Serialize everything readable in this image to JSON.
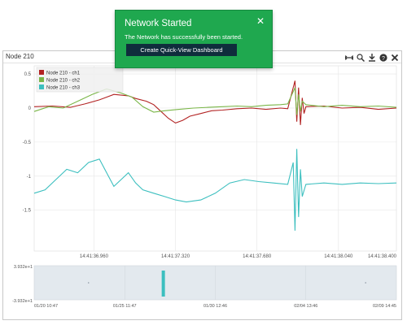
{
  "panel": {
    "title": "Node 210",
    "toolbar": [
      {
        "name": "pan-icon",
        "glyph": "⋈"
      },
      {
        "name": "zoom-icon",
        "glyph": "⌕"
      },
      {
        "name": "download-icon",
        "glyph": "⤓"
      },
      {
        "name": "help-icon",
        "glyph": "?"
      },
      {
        "name": "close-icon",
        "glyph": "✕"
      }
    ]
  },
  "toast": {
    "title": "Network Started",
    "message": "The Network has successfully been started.",
    "button_label": "Create Quick-View Dashboard",
    "close_glyph": "✕",
    "bg_color": "#1fa84f",
    "button_color": "#0f2d3c"
  },
  "chart_data": {
    "type": "line",
    "legend_position": "top-left",
    "grid": true,
    "y_ticks": [
      "0.5",
      "0",
      "-0.5",
      "-1",
      "-1.5"
    ],
    "y_range": [
      -2.1,
      0.62
    ],
    "x_ticks": [
      "14:41:36.960",
      "14:41:37.320",
      "14:41:37.680",
      "14:41:38.040",
      "14:41:38.400"
    ],
    "x_range": [
      "14:41:36.800",
      "14:41:38.410"
    ],
    "series": [
      {
        "name": "Node 210 - ch1",
        "color": "#b22222",
        "points": [
          [
            0,
            0.02
          ],
          [
            0.05,
            0.03
          ],
          [
            0.1,
            0.01
          ],
          [
            0.14,
            0.06
          ],
          [
            0.18,
            0.12
          ],
          [
            0.22,
            0.2
          ],
          [
            0.26,
            0.18
          ],
          [
            0.28,
            0.14
          ],
          [
            0.31,
            0.1
          ],
          [
            0.33,
            0.05
          ],
          [
            0.35,
            -0.05
          ],
          [
            0.37,
            -0.15
          ],
          [
            0.39,
            -0.22
          ],
          [
            0.41,
            -0.18
          ],
          [
            0.43,
            -0.12
          ],
          [
            0.46,
            -0.08
          ],
          [
            0.49,
            -0.04
          ],
          [
            0.52,
            -0.03
          ],
          [
            0.56,
            -0.01
          ],
          [
            0.6,
            0.0
          ],
          [
            0.64,
            -0.02
          ],
          [
            0.68,
            0.0
          ],
          [
            0.7,
            -0.01
          ],
          [
            0.72,
            0.4
          ],
          [
            0.725,
            -0.2
          ],
          [
            0.73,
            0.3
          ],
          [
            0.735,
            -0.25
          ],
          [
            0.74,
            0.15
          ],
          [
            0.745,
            -0.08
          ],
          [
            0.75,
            0.02
          ],
          [
            0.8,
            0.03
          ],
          [
            0.85,
            0.0
          ],
          [
            0.9,
            0.01
          ],
          [
            0.95,
            -0.02
          ],
          [
            1,
            0.0
          ]
        ]
      },
      {
        "name": "Node 210 - ch2",
        "color": "#7ab648",
        "points": [
          [
            0,
            -0.05
          ],
          [
            0.04,
            0.02
          ],
          [
            0.08,
            0.0
          ],
          [
            0.12,
            0.1
          ],
          [
            0.16,
            0.2
          ],
          [
            0.2,
            0.28
          ],
          [
            0.24,
            0.22
          ],
          [
            0.27,
            0.16
          ],
          [
            0.3,
            0.02
          ],
          [
            0.33,
            -0.06
          ],
          [
            0.36,
            -0.04
          ],
          [
            0.4,
            -0.02
          ],
          [
            0.44,
            0.0
          ],
          [
            0.48,
            0.01
          ],
          [
            0.52,
            0.02
          ],
          [
            0.56,
            0.03
          ],
          [
            0.6,
            0.02
          ],
          [
            0.64,
            0.04
          ],
          [
            0.68,
            0.05
          ],
          [
            0.7,
            0.06
          ],
          [
            0.72,
            0.3
          ],
          [
            0.725,
            -0.1
          ],
          [
            0.73,
            0.2
          ],
          [
            0.735,
            -0.05
          ],
          [
            0.74,
            0.1
          ],
          [
            0.75,
            0.05
          ],
          [
            0.8,
            0.02
          ],
          [
            0.85,
            0.04
          ],
          [
            0.9,
            0.02
          ],
          [
            0.95,
            0.03
          ],
          [
            1,
            0.01
          ]
        ]
      },
      {
        "name": "Node 210 - ch3",
        "color": "#3cbfbf",
        "points": [
          [
            0,
            -1.25
          ],
          [
            0.03,
            -1.2
          ],
          [
            0.06,
            -1.05
          ],
          [
            0.09,
            -0.9
          ],
          [
            0.12,
            -0.95
          ],
          [
            0.15,
            -0.8
          ],
          [
            0.18,
            -0.75
          ],
          [
            0.2,
            -0.95
          ],
          [
            0.22,
            -1.15
          ],
          [
            0.24,
            -1.05
          ],
          [
            0.26,
            -0.95
          ],
          [
            0.28,
            -1.1
          ],
          [
            0.3,
            -1.2
          ],
          [
            0.33,
            -1.25
          ],
          [
            0.36,
            -1.3
          ],
          [
            0.39,
            -1.35
          ],
          [
            0.42,
            -1.38
          ],
          [
            0.46,
            -1.35
          ],
          [
            0.5,
            -1.25
          ],
          [
            0.54,
            -1.1
          ],
          [
            0.58,
            -1.05
          ],
          [
            0.62,
            -1.08
          ],
          [
            0.66,
            -1.1
          ],
          [
            0.7,
            -1.12
          ],
          [
            0.715,
            -0.8
          ],
          [
            0.72,
            -1.8
          ],
          [
            0.725,
            -0.6
          ],
          [
            0.73,
            -1.6
          ],
          [
            0.735,
            -0.9
          ],
          [
            0.74,
            -1.3
          ],
          [
            0.75,
            -1.12
          ],
          [
            0.8,
            -1.1
          ],
          [
            0.85,
            -1.12
          ],
          [
            0.9,
            -1.1
          ],
          [
            0.95,
            -1.11
          ],
          [
            1,
            -1.1
          ]
        ]
      }
    ]
  },
  "navigator": {
    "y_top_label": "3.932e+1",
    "y_bottom_label": "-3.932e+1",
    "x_labels": [
      "01/20 10:47",
      "01/25 11:47",
      "01/30 12:46",
      "02/04 13:46",
      "02/09 14:45"
    ],
    "bg_color": "#e3e9ee",
    "highlight_color": "#3cbfbf"
  }
}
